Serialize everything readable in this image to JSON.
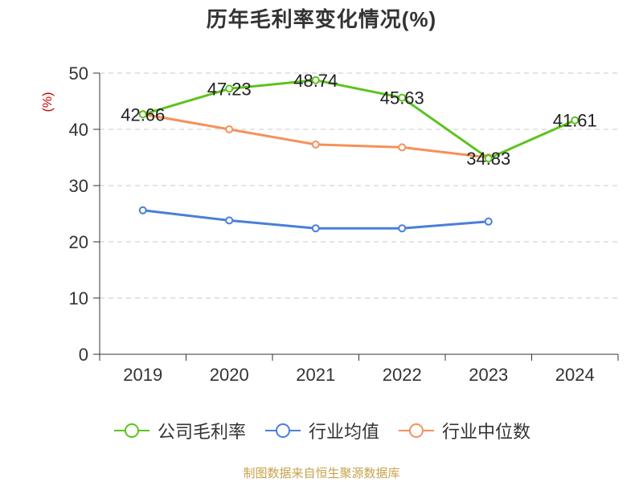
{
  "chart_data": {
    "type": "line",
    "title": "历年毛利率变化情况(%)",
    "ylabel": "(%)",
    "categories": [
      "2019",
      "2020",
      "2021",
      "2022",
      "2023",
      "2024"
    ],
    "ylim": [
      0,
      50
    ],
    "yticks": [
      0,
      10,
      20,
      30,
      40,
      50
    ],
    "grid": true,
    "legend_position": "bottom",
    "series": [
      {
        "name": "公司毛利率",
        "color": "#5cc31e",
        "values": [
          42.66,
          47.23,
          48.74,
          45.63,
          34.83,
          41.61
        ],
        "labels": [
          "42.66",
          "47.23",
          "48.74",
          "45.63",
          "34.83",
          "41.61"
        ]
      },
      {
        "name": "行业均值",
        "color": "#4a7fd9",
        "values": [
          25.6,
          23.8,
          22.4,
          22.4,
          23.6,
          null
        ]
      },
      {
        "name": "行业中位数",
        "color": "#f5915a",
        "values": [
          42.7,
          40.0,
          37.3,
          36.8,
          35.0,
          null
        ]
      }
    ]
  },
  "source": "制图数据来自恒生聚源数据库"
}
